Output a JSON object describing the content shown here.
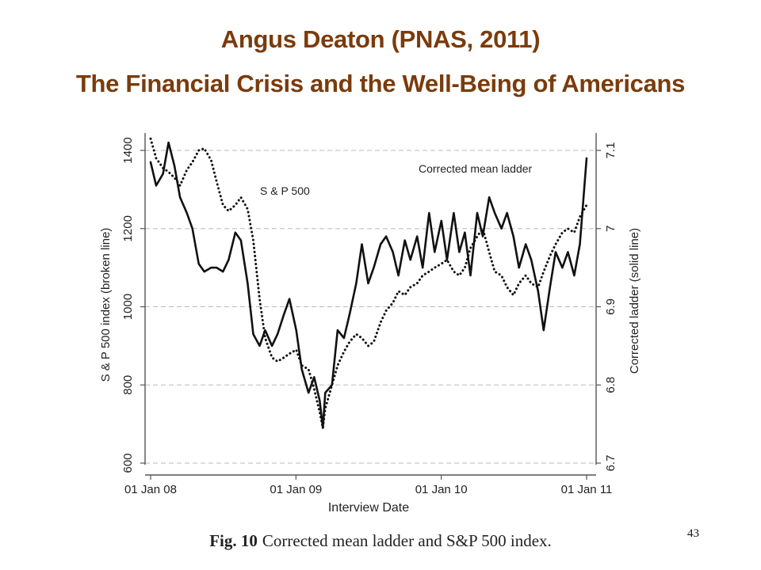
{
  "slide": {
    "title_line_1": "Angus Deaton (PNAS, 2011)",
    "title_line_2": "The Financial Crisis and the Well-Being of Americans",
    "caption_label": "Fig. 10",
    "caption_text": "Corrected mean ladder and S&P 500 index.",
    "page_number": "43",
    "title_color": "#7a3b0c"
  },
  "chart_data": {
    "type": "line",
    "xlabel": "Interview Date",
    "ylabel_left": "S & P 500 index (broken line)",
    "ylabel_right": "Corrected ladder (solid line)",
    "x_range": [
      "2008-01-01",
      "2011-01-01"
    ],
    "x_ticks": [
      "01 Jan 08",
      "01 Jan 09",
      "01 Jan 10",
      "01 Jan 11"
    ],
    "y_left_range": [
      600,
      1400
    ],
    "y_left_ticks": [
      600,
      800,
      1000,
      1200,
      1400
    ],
    "y_right_range": [
      6.7,
      7.1
    ],
    "y_right_ticks": [
      6.7,
      6.8,
      6.9,
      7,
      7.1
    ],
    "grid": "horizontal dashed",
    "series": [
      {
        "name": "S & P 500",
        "axis": "left",
        "style": "dotted",
        "x": [
          "2008-01-01",
          "2008-01-15",
          "2008-02-01",
          "2008-02-15",
          "2008-03-01",
          "2008-03-15",
          "2008-04-01",
          "2008-04-15",
          "2008-05-01",
          "2008-05-15",
          "2008-06-01",
          "2008-06-15",
          "2008-07-01",
          "2008-07-15",
          "2008-08-01",
          "2008-08-15",
          "2008-09-01",
          "2008-09-15",
          "2008-10-01",
          "2008-10-15",
          "2008-11-01",
          "2008-11-15",
          "2008-12-01",
          "2008-12-15",
          "2009-01-01",
          "2009-01-15",
          "2009-02-01",
          "2009-02-15",
          "2009-03-01",
          "2009-03-09",
          "2009-03-15",
          "2009-04-01",
          "2009-04-15",
          "2009-05-01",
          "2009-05-15",
          "2009-06-01",
          "2009-06-15",
          "2009-07-01",
          "2009-07-15",
          "2009-08-01",
          "2009-08-15",
          "2009-09-01",
          "2009-09-15",
          "2009-10-01",
          "2009-10-15",
          "2009-11-01",
          "2009-11-15",
          "2009-12-01",
          "2009-12-15",
          "2010-01-01",
          "2010-01-15",
          "2010-02-01",
          "2010-02-15",
          "2010-03-01",
          "2010-03-15",
          "2010-04-01",
          "2010-04-15",
          "2010-05-01",
          "2010-05-15",
          "2010-06-01",
          "2010-06-15",
          "2010-07-01",
          "2010-07-15",
          "2010-08-01",
          "2010-08-15",
          "2010-09-01",
          "2010-09-15",
          "2010-10-01",
          "2010-10-15",
          "2010-11-01",
          "2010-11-15",
          "2010-12-01",
          "2010-12-15",
          "2011-01-01"
        ],
        "values": [
          1430,
          1380,
          1355,
          1345,
          1330,
          1310,
          1350,
          1370,
          1400,
          1405,
          1375,
          1320,
          1260,
          1245,
          1260,
          1280,
          1250,
          1170,
          1020,
          920,
          870,
          860,
          870,
          880,
          890,
          850,
          840,
          790,
          730,
          690,
          740,
          800,
          850,
          885,
          910,
          930,
          920,
          900,
          910,
          960,
          990,
          1010,
          1040,
          1030,
          1050,
          1060,
          1080,
          1090,
          1100,
          1110,
          1120,
          1090,
          1080,
          1100,
          1150,
          1180,
          1200,
          1140,
          1090,
          1080,
          1050,
          1030,
          1060,
          1080,
          1060,
          1050,
          1090,
          1130,
          1160,
          1190,
          1200,
          1190,
          1230,
          1260
        ]
      },
      {
        "name": "Corrected mean ladder",
        "axis": "right",
        "style": "solid",
        "x": [
          "2008-01-01",
          "2008-01-15",
          "2008-02-01",
          "2008-02-15",
          "2008-03-01",
          "2008-03-15",
          "2008-04-01",
          "2008-04-15",
          "2008-05-01",
          "2008-05-15",
          "2008-06-01",
          "2008-06-15",
          "2008-07-01",
          "2008-07-15",
          "2008-08-01",
          "2008-08-15",
          "2008-09-01",
          "2008-09-15",
          "2008-10-01",
          "2008-10-15",
          "2008-11-01",
          "2008-11-15",
          "2008-12-01",
          "2008-12-15",
          "2009-01-01",
          "2009-01-15",
          "2009-02-01",
          "2009-02-15",
          "2009-03-01",
          "2009-03-09",
          "2009-03-15",
          "2009-04-01",
          "2009-04-15",
          "2009-05-01",
          "2009-05-15",
          "2009-06-01",
          "2009-06-15",
          "2009-07-01",
          "2009-07-15",
          "2009-08-01",
          "2009-08-15",
          "2009-09-01",
          "2009-09-15",
          "2009-10-01",
          "2009-10-15",
          "2009-11-01",
          "2009-11-15",
          "2009-12-01",
          "2009-12-15",
          "2010-01-01",
          "2010-01-15",
          "2010-02-01",
          "2010-02-15",
          "2010-03-01",
          "2010-03-15",
          "2010-04-01",
          "2010-04-15",
          "2010-05-01",
          "2010-05-15",
          "2010-06-01",
          "2010-06-15",
          "2010-07-01",
          "2010-07-15",
          "2010-08-01",
          "2010-08-15",
          "2010-09-01",
          "2010-09-15",
          "2010-10-01",
          "2010-10-15",
          "2010-11-01",
          "2010-11-15",
          "2010-12-01",
          "2010-12-15",
          "2011-01-01"
        ],
        "values": [
          7.085,
          7.055,
          7.07,
          7.11,
          7.08,
          7.04,
          7.02,
          7.0,
          6.955,
          6.945,
          6.95,
          6.95,
          6.945,
          6.96,
          6.995,
          6.985,
          6.93,
          6.865,
          6.85,
          6.87,
          6.85,
          6.865,
          6.89,
          6.91,
          6.87,
          6.82,
          6.79,
          6.81,
          6.78,
          6.745,
          6.79,
          6.8,
          6.87,
          6.86,
          6.89,
          6.93,
          6.98,
          6.93,
          6.95,
          6.98,
          6.99,
          6.97,
          6.94,
          6.985,
          6.96,
          6.99,
          6.95,
          7.02,
          6.97,
          7.01,
          6.96,
          7.02,
          6.97,
          6.995,
          6.94,
          7.02,
          6.99,
          7.04,
          7.02,
          7.0,
          7.02,
          6.99,
          6.95,
          6.98,
          6.96,
          6.92,
          6.87,
          6.925,
          6.97,
          6.95,
          6.97,
          6.94,
          6.98,
          7.09
        ]
      }
    ],
    "annotations": [
      {
        "text": "Corrected mean ladder",
        "series": "Corrected mean ladder"
      },
      {
        "text": "S & P 500",
        "series": "S & P 500"
      }
    ]
  }
}
